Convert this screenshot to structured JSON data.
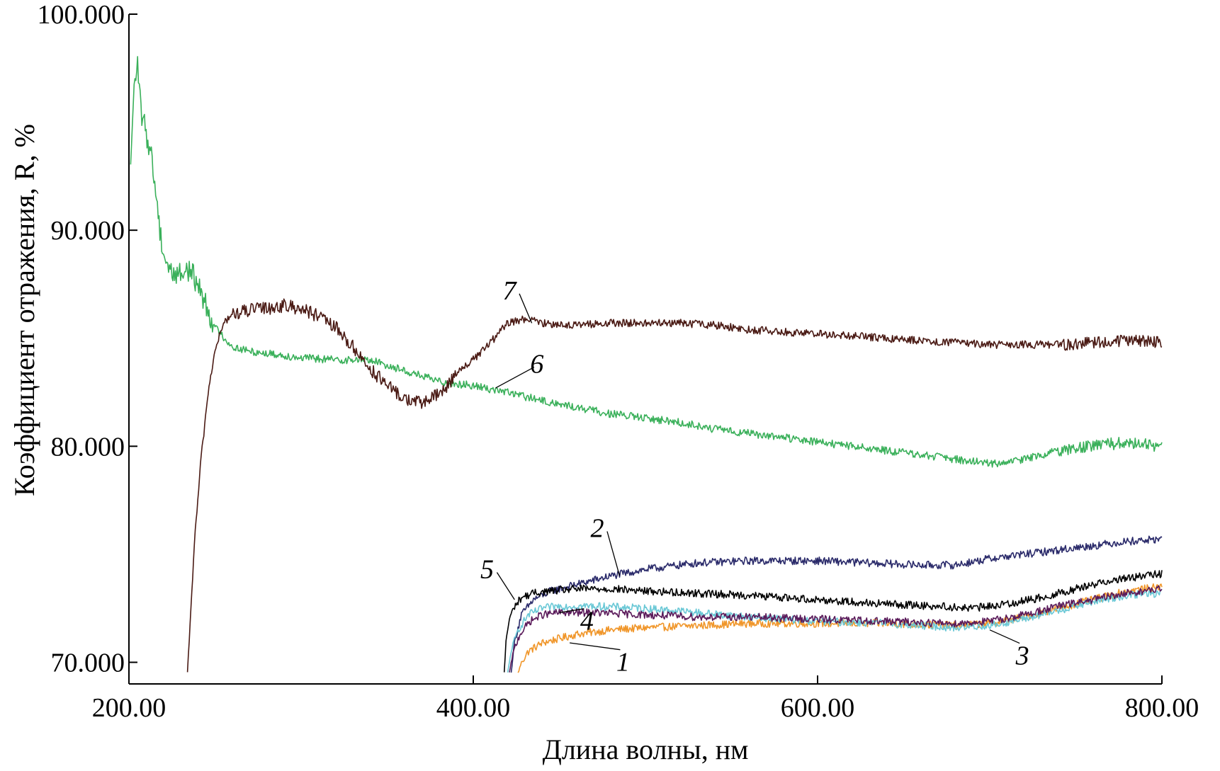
{
  "chart_data": {
    "type": "line",
    "title": "",
    "xlabel": "Длина волны, нм",
    "ylabel": "Коэффициент отражения, R, %",
    "xlim": [
      200,
      800
    ],
    "ylim": [
      69,
      100
    ],
    "xticks": [
      {
        "value": 200,
        "label": "200.00"
      },
      {
        "value": 400,
        "label": "400.00"
      },
      {
        "value": 600,
        "label": "600.00"
      },
      {
        "value": 800,
        "label": "800.00"
      }
    ],
    "yticks": [
      {
        "value": 70,
        "label": "70.000"
      },
      {
        "value": 80,
        "label": "80.000"
      },
      {
        "value": 90,
        "label": "90.000"
      },
      {
        "value": 100,
        "label": "100.000"
      }
    ],
    "grid": false,
    "series": [
      {
        "label": "1",
        "color": "#f0962a",
        "x": [
          426,
          428,
          432,
          440,
          450,
          460,
          480,
          500,
          530,
          560,
          600,
          640,
          680,
          700,
          720,
          740,
          760,
          780,
          800
        ],
        "y": [
          69.5,
          70.0,
          70.5,
          70.9,
          71.1,
          71.3,
          71.5,
          71.6,
          71.7,
          71.8,
          71.8,
          71.8,
          71.7,
          71.8,
          72.1,
          72.5,
          72.9,
          73.3,
          73.5
        ]
      },
      {
        "label": "2",
        "color": "#2a2a6a",
        "x": [
          422,
          424,
          428,
          435,
          445,
          460,
          480,
          500,
          530,
          560,
          600,
          630,
          660,
          680,
          700,
          720,
          740,
          760,
          780,
          800
        ],
        "y": [
          69.5,
          71.0,
          72.2,
          72.9,
          73.3,
          73.6,
          74.0,
          74.3,
          74.6,
          74.7,
          74.7,
          74.6,
          74.5,
          74.5,
          74.8,
          75.0,
          75.2,
          75.4,
          75.6,
          75.7
        ]
      },
      {
        "label": "3",
        "color": "#6ac8d6",
        "x": [
          420,
          422,
          426,
          432,
          440,
          450,
          470,
          500,
          530,
          560,
          600,
          640,
          680,
          700,
          720,
          740,
          760,
          780,
          800
        ],
        "y": [
          69.5,
          70.5,
          71.5,
          72.2,
          72.5,
          72.6,
          72.6,
          72.5,
          72.3,
          72.1,
          71.9,
          71.8,
          71.6,
          71.7,
          72.0,
          72.4,
          72.8,
          73.1,
          73.2
        ]
      },
      {
        "label": "4",
        "color": "#5a1a5a",
        "x": [
          421,
          423,
          427,
          433,
          440,
          450,
          470,
          500,
          530,
          560,
          600,
          640,
          680,
          700,
          720,
          740,
          760,
          780,
          800
        ],
        "y": [
          69.5,
          70.4,
          71.3,
          71.9,
          72.2,
          72.3,
          72.3,
          72.2,
          72.1,
          72.1,
          72.0,
          71.9,
          71.8,
          71.9,
          72.2,
          72.6,
          72.9,
          73.2,
          73.4
        ]
      },
      {
        "label": "5",
        "color": "#000000",
        "x": [
          418,
          419,
          421,
          424,
          428,
          435,
          445,
          460,
          480,
          500,
          530,
          560,
          600,
          640,
          670,
          690,
          710,
          730,
          750,
          770,
          790,
          800
        ],
        "y": [
          69.5,
          71.0,
          72.0,
          72.6,
          73.0,
          73.2,
          73.3,
          73.4,
          73.4,
          73.3,
          73.2,
          73.1,
          72.9,
          72.7,
          72.6,
          72.5,
          72.7,
          73.0,
          73.4,
          73.8,
          74.0,
          74.1
        ]
      },
      {
        "label": "6",
        "color": "#3ab05a",
        "x": [
          201,
          203,
          205,
          207,
          210,
          213,
          216,
          218,
          220,
          222,
          225,
          230,
          235,
          240,
          245,
          250,
          260,
          270,
          280,
          290,
          300,
          320,
          340,
          360,
          380,
          400,
          420,
          440,
          460,
          480,
          500,
          520,
          540,
          560,
          580,
          600,
          620,
          640,
          660,
          680,
          690,
          700,
          710,
          720,
          730,
          740,
          760,
          780,
          800
        ],
        "y": [
          93.0,
          96.8,
          97.5,
          95.5,
          94.5,
          93.5,
          91.5,
          90.0,
          89.0,
          88.5,
          88.0,
          88.0,
          88.2,
          87.5,
          86.5,
          85.5,
          84.6,
          84.4,
          84.3,
          84.2,
          84.1,
          84.0,
          84.0,
          83.5,
          83.0,
          82.8,
          82.5,
          82.1,
          81.8,
          81.5,
          81.3,
          81.1,
          80.8,
          80.6,
          80.4,
          80.2,
          80.0,
          79.8,
          79.6,
          79.4,
          79.3,
          79.2,
          79.2,
          79.4,
          79.6,
          79.8,
          80.0,
          80.2,
          80.0
        ]
      },
      {
        "label": "7",
        "color": "#4a1a14",
        "x": [
          234,
          235,
          236,
          237,
          238,
          240,
          242,
          244,
          246,
          249,
          252,
          256,
          260,
          270,
          280,
          290,
          300,
          310,
          320,
          330,
          340,
          350,
          360,
          370,
          380,
          385,
          390,
          400,
          410,
          420,
          430,
          440,
          460,
          480,
          500,
          520,
          540,
          560,
          580,
          600,
          620,
          640,
          660,
          680,
          700,
          720,
          740,
          760,
          780,
          800
        ],
        "y": [
          69.5,
          71.0,
          72.5,
          74.0,
          75.5,
          77.5,
          79.5,
          81.0,
          82.5,
          84.0,
          85.0,
          85.8,
          86.1,
          86.3,
          86.4,
          86.5,
          86.4,
          86.0,
          85.5,
          84.6,
          83.6,
          82.8,
          82.2,
          82.0,
          82.4,
          82.8,
          83.4,
          84.0,
          84.8,
          85.7,
          85.9,
          85.7,
          85.6,
          85.7,
          85.7,
          85.7,
          85.6,
          85.4,
          85.3,
          85.2,
          85.1,
          85.0,
          84.9,
          84.8,
          84.7,
          84.7,
          84.7,
          84.8,
          84.9,
          84.8
        ]
      }
    ],
    "annotations": [
      {
        "text": "1",
        "x": 487,
        "y": 69.6,
        "arrow_to": {
          "x": 456,
          "y": 70.9
        }
      },
      {
        "text": "2",
        "x": 472,
        "y": 75.8,
        "arrow_to": {
          "x": 485,
          "y": 74.0
        }
      },
      {
        "text": "3",
        "x": 719,
        "y": 69.9,
        "arrow_to": {
          "x": 700,
          "y": 71.5
        }
      },
      {
        "text": "4",
        "x": 466,
        "y": 71.5,
        "arrow_to": {
          "x": 450,
          "y": 72.3
        }
      },
      {
        "text": "5",
        "x": 408,
        "y": 73.9,
        "arrow_to": {
          "x": 424,
          "y": 72.9
        }
      },
      {
        "text": "6",
        "x": 437,
        "y": 83.4,
        "arrow_to": {
          "x": 413,
          "y": 82.7
        }
      },
      {
        "text": "7",
        "x": 421,
        "y": 86.8,
        "arrow_to": {
          "x": 434,
          "y": 85.7
        }
      }
    ]
  }
}
